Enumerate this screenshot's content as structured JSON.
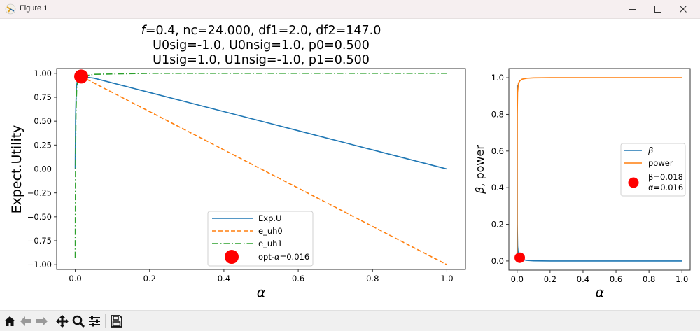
{
  "window": {
    "title": "Figure 1",
    "controls": [
      "minimize",
      "maximize",
      "close"
    ]
  },
  "toolbar": {
    "buttons": [
      {
        "name": "home",
        "icon": "home-icon"
      },
      {
        "name": "back",
        "icon": "arrow-left-icon"
      },
      {
        "name": "forward",
        "icon": "arrow-right-icon"
      },
      {
        "name": "pan",
        "icon": "move-icon"
      },
      {
        "name": "zoom",
        "icon": "magnifier-icon"
      },
      {
        "name": "configure-subplots",
        "icon": "sliders-icon"
      },
      {
        "name": "save",
        "icon": "floppy-disk-icon"
      }
    ]
  },
  "chart_data": [
    {
      "type": "line",
      "title_lines": [
        "f=0.4, nc=24.000, df1=2.0, df2=147.0",
        "U0sig=-1.0, U0nsig=1.0, p0=0.500",
        "U1sig=1.0, U1nsig=-1.0, p1=0.500"
      ],
      "title_f_italic": "f",
      "title_line1_rest": "=0.4, nc=24.000, df1=2.0, df2=147.0",
      "xlabel": "α",
      "ylabel": "Expect.Utility",
      "xlim": [
        -0.05,
        1.05
      ],
      "ylim": [
        -1.05,
        1.05
      ],
      "xticks": [
        0.0,
        0.2,
        0.4,
        0.6,
        0.8,
        1.0
      ],
      "xtick_labels": [
        "0.0",
        "0.2",
        "0.4",
        "0.6",
        "0.8",
        "1.0"
      ],
      "yticks": [
        1.0,
        0.75,
        0.5,
        0.25,
        0.0,
        -0.25,
        -0.5,
        -0.75,
        -1.0
      ],
      "ytick_labels": [
        "1.00",
        "0.75",
        "0.50",
        "0.25",
        "0.00",
        "−0.25",
        "−0.50",
        "−0.75",
        "−1.00"
      ],
      "legend_position": "lower-center",
      "series": [
        {
          "name": "Exp.U",
          "color": "#1f77b4",
          "style": "solid",
          "x": [
            0.0,
            0.001,
            0.003,
            0.006,
            0.01,
            0.016,
            0.05,
            0.2,
            0.4,
            0.6,
            0.8,
            1.0
          ],
          "y": [
            0.0,
            0.55,
            0.85,
            0.93,
            0.96,
            0.967,
            0.95,
            0.8,
            0.6,
            0.4,
            0.2,
            0.0
          ]
        },
        {
          "name": "e_uh0",
          "color": "#ff7f0e",
          "style": "dashed",
          "x": [
            0.016,
            0.2,
            0.4,
            0.6,
            0.8,
            1.0
          ],
          "y": [
            0.968,
            0.6,
            0.2,
            -0.2,
            -0.6,
            -1.0
          ]
        },
        {
          "name": "e_uh1",
          "color": "#2ca02c",
          "style": "dashdot",
          "x": [
            0.0,
            0.0005,
            0.001,
            0.002,
            0.004,
            0.008,
            0.016,
            0.05,
            0.2,
            0.5,
            1.0
          ],
          "y": [
            -0.93,
            -0.3,
            0.2,
            0.6,
            0.85,
            0.94,
            0.964,
            0.99,
            1.0,
            1.0,
            1.0
          ]
        }
      ],
      "marker": {
        "name": "opt-α=0.016",
        "label_prefix": "opt-",
        "label_alpha": "α",
        "label_value": "=0.016",
        "x": 0.016,
        "y": 0.967,
        "color": "#ff0000"
      }
    },
    {
      "type": "line",
      "xlabel": "α",
      "ylabel": "β, power",
      "ylabel_beta": "β",
      "ylabel_rest": ", power",
      "xlim": [
        -0.05,
        1.05
      ],
      "ylim": [
        -0.05,
        1.05
      ],
      "xticks": [
        0.0,
        0.2,
        0.4,
        0.6,
        0.8,
        1.0
      ],
      "xtick_labels": [
        "0.0",
        "0.2",
        "0.4",
        "0.6",
        "0.8",
        "1.0"
      ],
      "yticks": [
        0.0,
        0.2,
        0.4,
        0.6,
        0.8,
        1.0
      ],
      "ytick_labels": [
        "0.0",
        "0.2",
        "0.4",
        "0.6",
        "0.8",
        "1.0"
      ],
      "legend_position": "center-right",
      "series": [
        {
          "name": "β",
          "color": "#1f77b4",
          "style": "solid",
          "x": [
            0.0,
            0.0005,
            0.001,
            0.003,
            0.008,
            0.016,
            0.03,
            0.06,
            0.1,
            0.2,
            0.5,
            1.0
          ],
          "y": [
            0.96,
            0.5,
            0.2,
            0.08,
            0.03,
            0.018,
            0.008,
            0.003,
            0.001,
            0.0,
            0.0,
            0.0
          ]
        },
        {
          "name": "power",
          "color": "#ff7f0e",
          "style": "solid",
          "x": [
            0.0,
            0.0005,
            0.001,
            0.003,
            0.008,
            0.016,
            0.03,
            0.06,
            0.1,
            0.2,
            0.5,
            1.0
          ],
          "y": [
            0.04,
            0.5,
            0.8,
            0.92,
            0.97,
            0.982,
            0.992,
            0.997,
            0.999,
            1.0,
            1.0,
            1.0
          ]
        }
      ],
      "marker": {
        "label_line1": "β=0.018",
        "label_line2": "α=0.016",
        "x": 0.016,
        "y": 0.018,
        "color": "#ff0000"
      }
    }
  ]
}
